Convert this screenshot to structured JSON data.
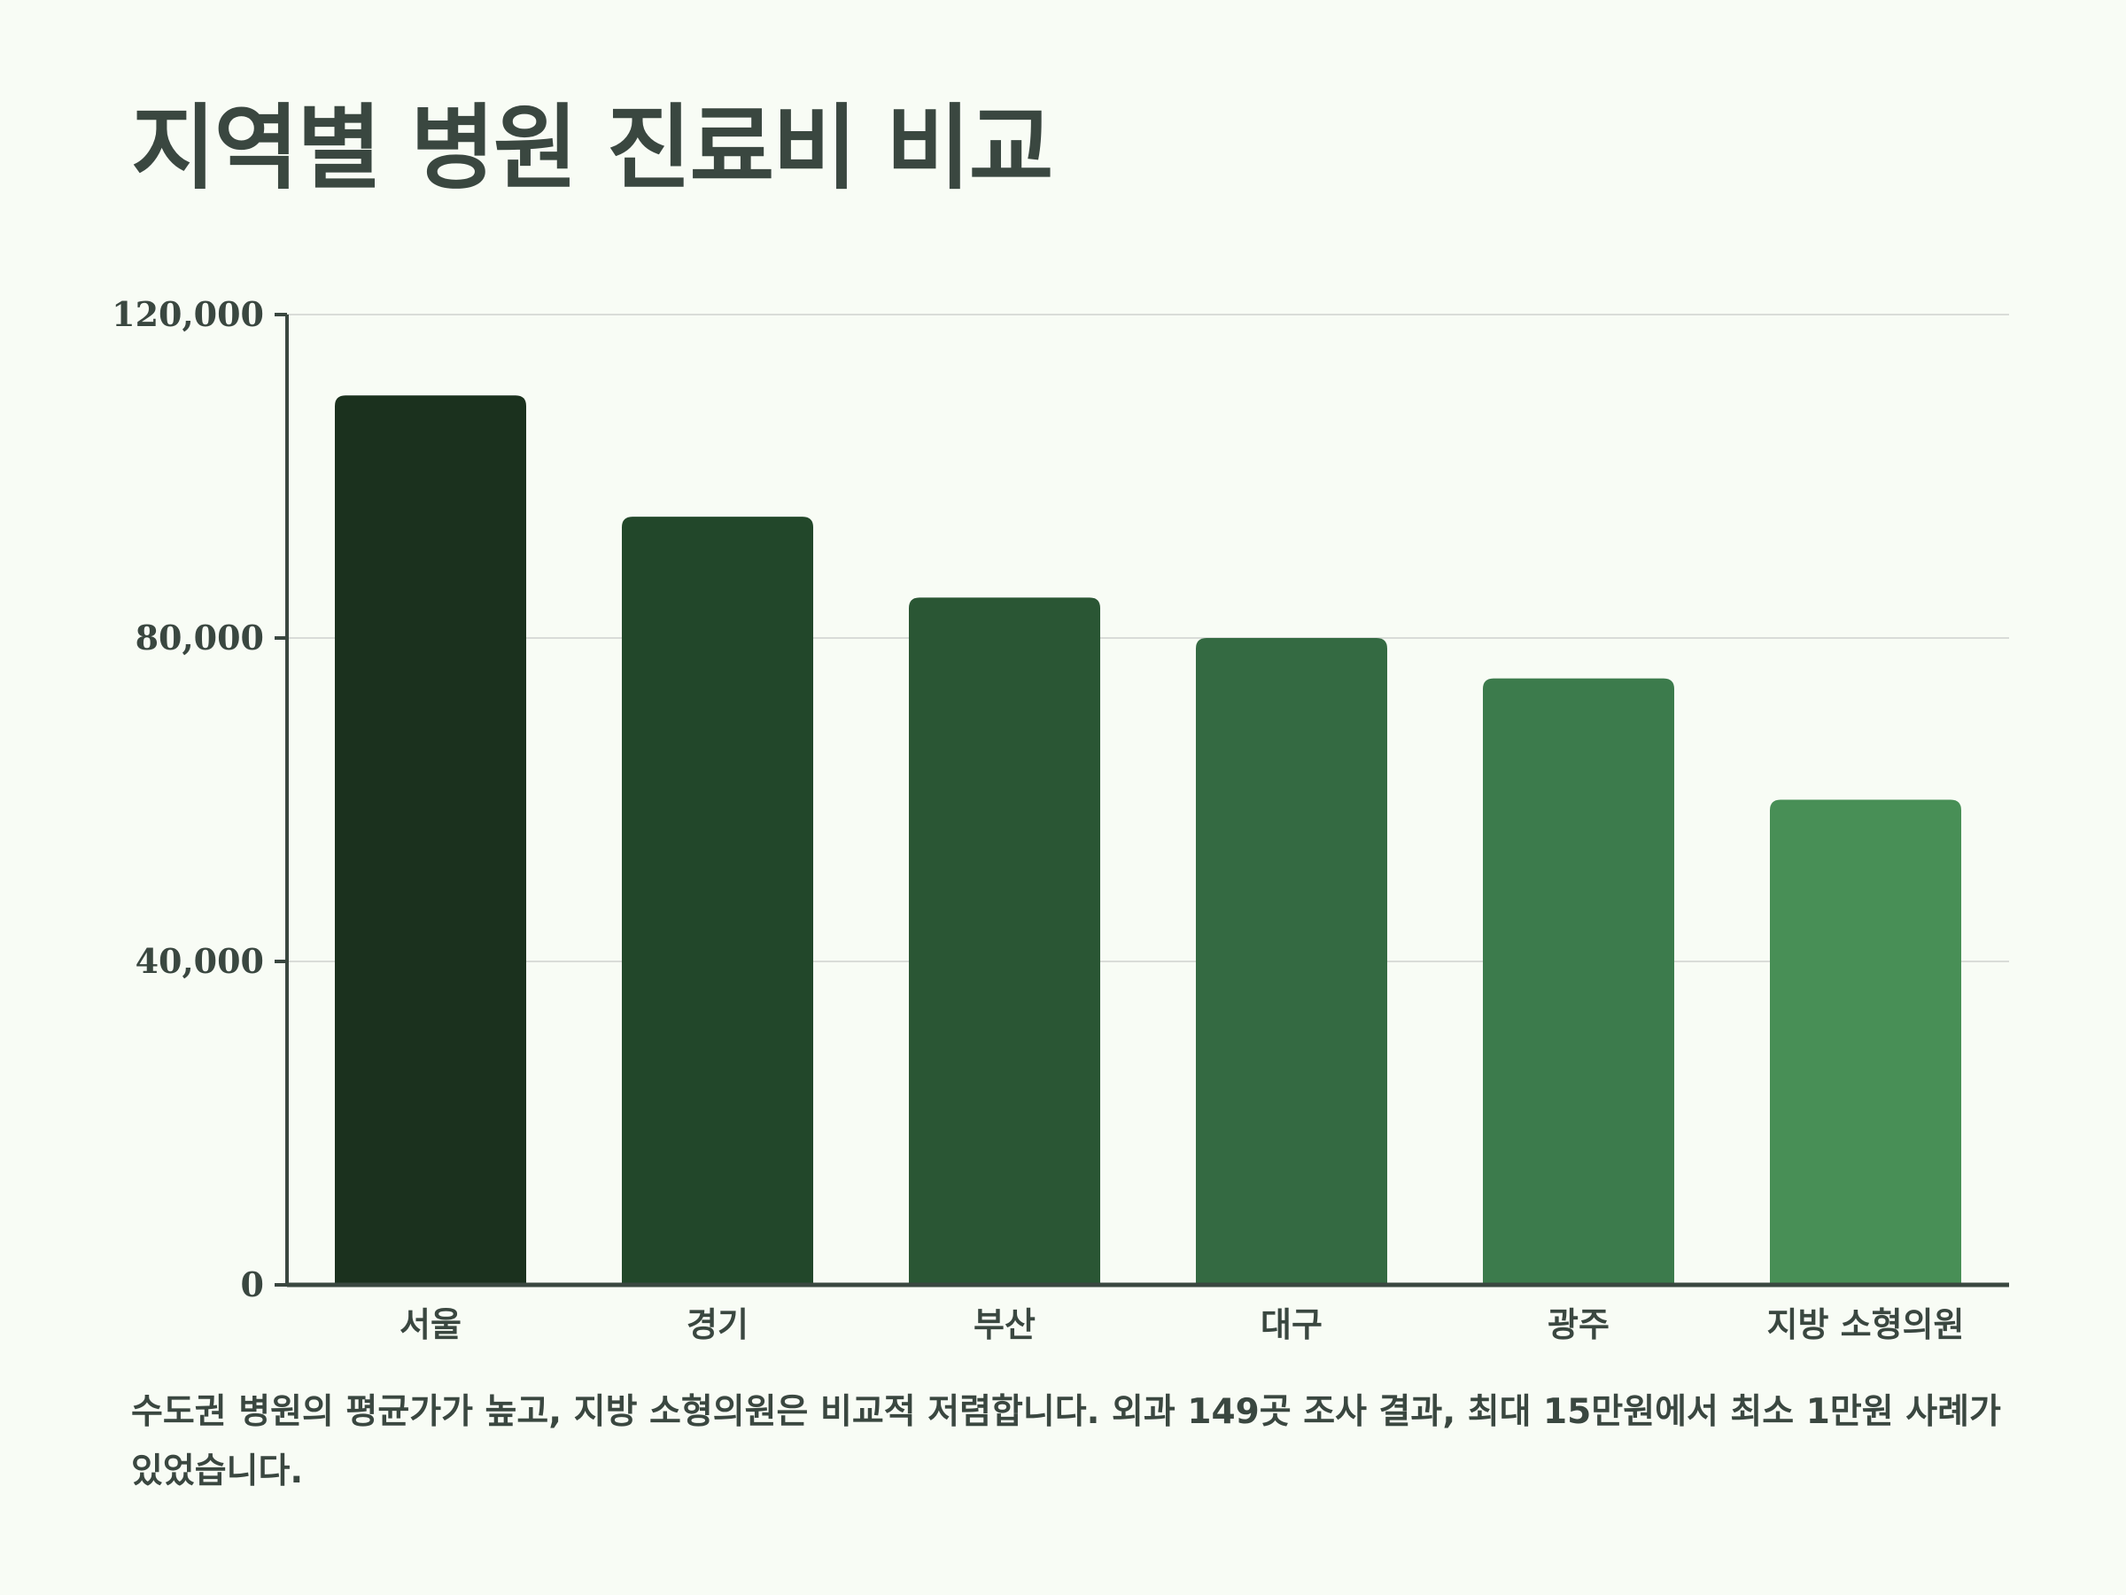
{
  "title": "지역별 병원 진료비 비교",
  "caption": "수도권 병원의 평균가가 높고, 지방 소형의원은 비교적 저렴합니다. 외과 149곳 조사 결과, 최대 15만원에서 최소 1만원 사례가 있었습니다.",
  "colors": {
    "background": "#f8fcf5",
    "text": "#3a4740",
    "grid": "#d9dcd8",
    "axis": "#3a4740",
    "bars": [
      "#1b311e",
      "#22472a",
      "#2a5634",
      "#346a42",
      "#3c7b4c",
      "#488f56"
    ]
  },
  "chart_data": {
    "type": "bar",
    "title": "지역별 병원 진료비 비교",
    "xlabel": "",
    "ylabel": "",
    "categories": [
      "서울",
      "경기",
      "부산",
      "대구",
      "광주",
      "지방 소형의원"
    ],
    "values": [
      110000,
      95000,
      85000,
      80000,
      75000,
      60000
    ],
    "ylim": [
      0,
      120000
    ],
    "yticks": [
      0,
      40000,
      80000,
      120000
    ],
    "ytick_labels": [
      "0",
      "40,000",
      "80,000",
      "120,000"
    ],
    "grid": true,
    "legend": "none"
  }
}
